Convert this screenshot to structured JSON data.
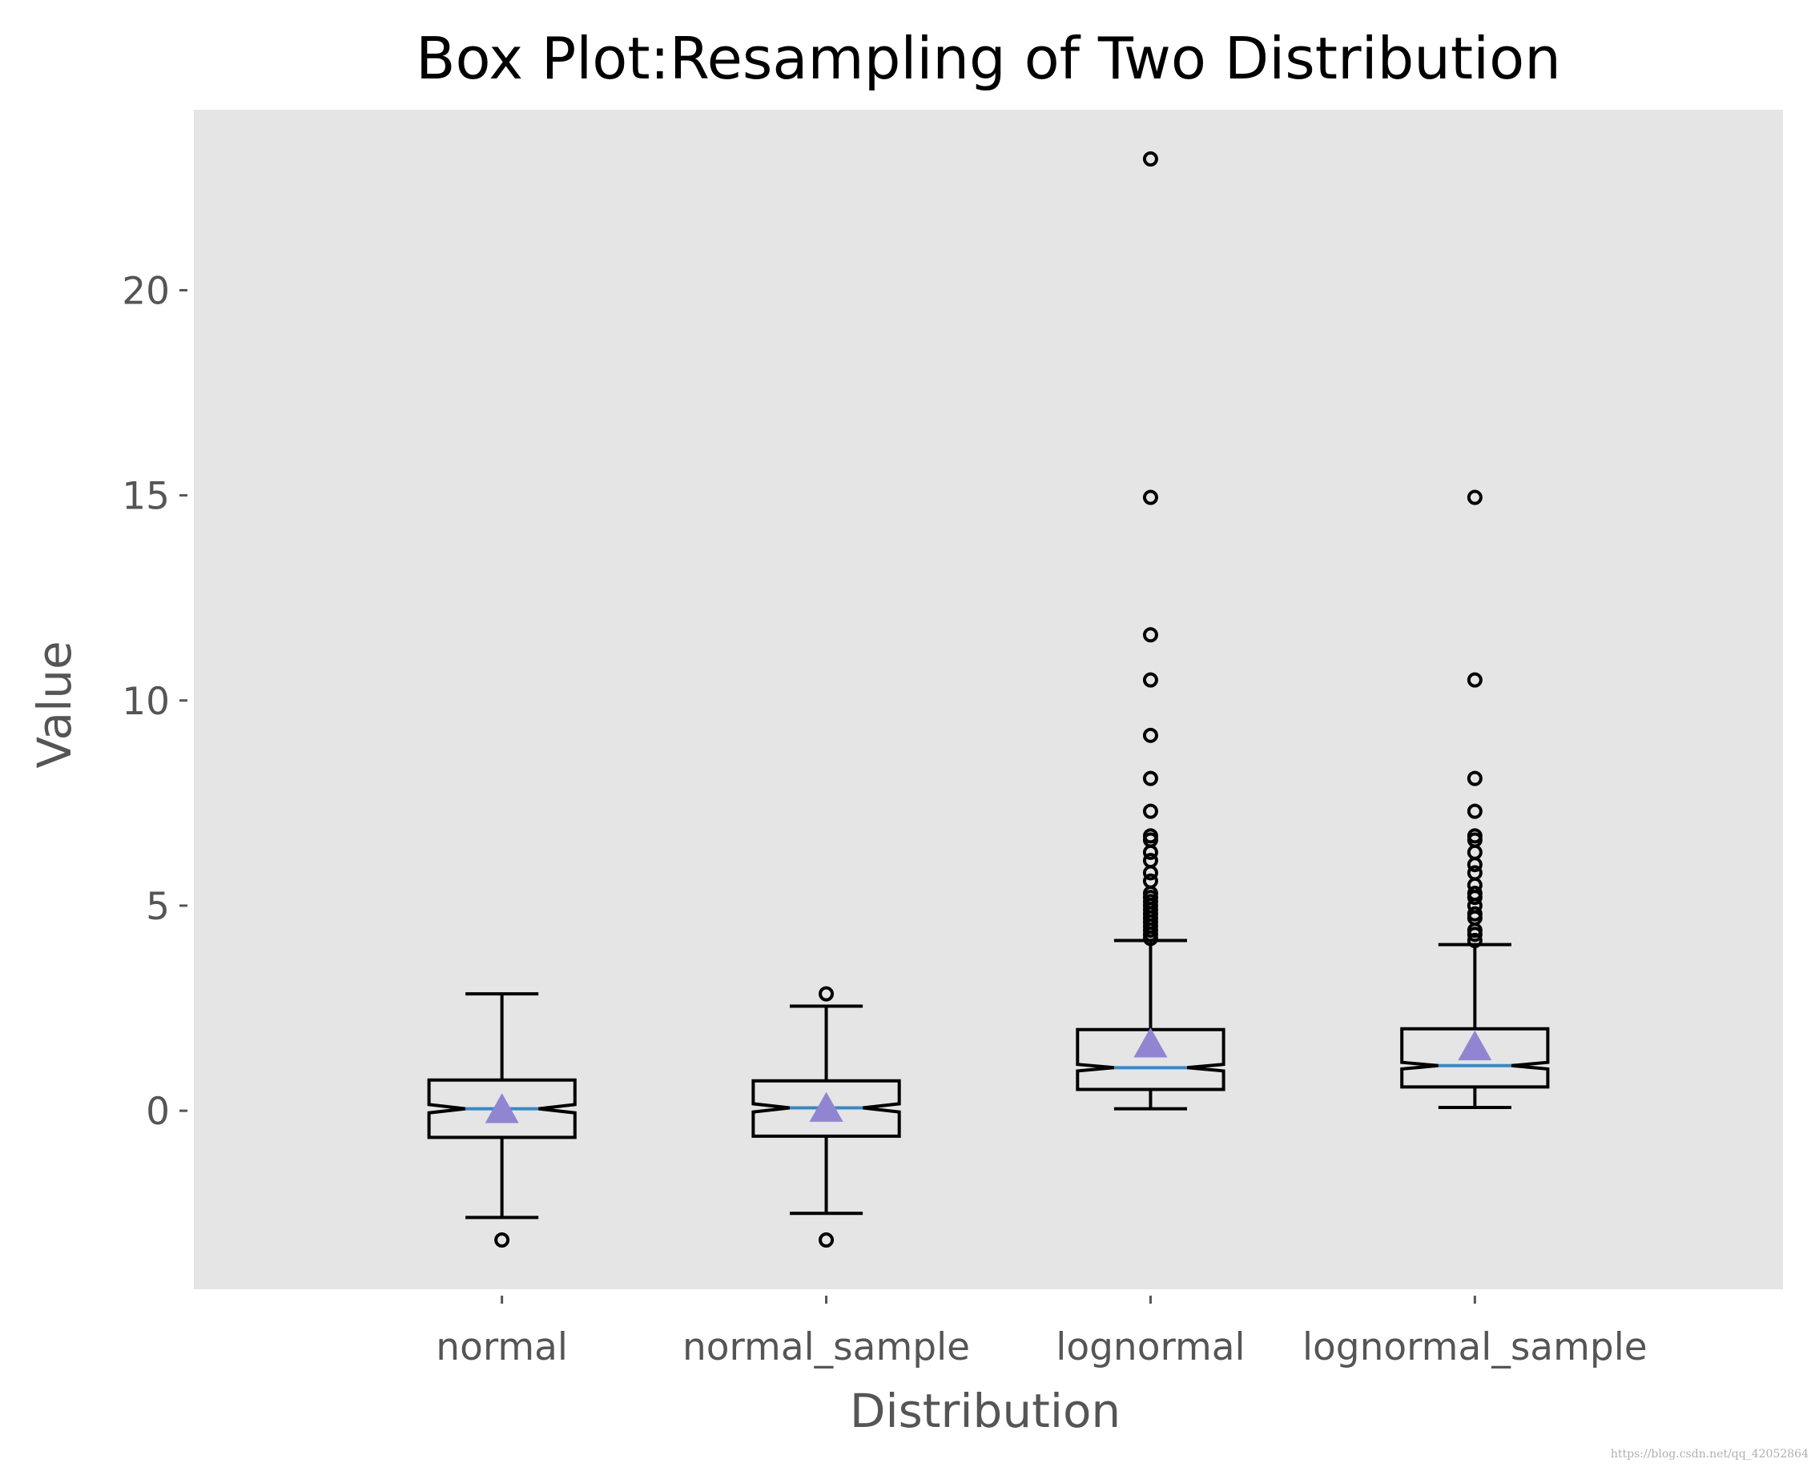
{
  "chart_data": {
    "type": "box",
    "title": "Box Plot:Resampling of Two Distribution",
    "xlabel": "Distribution",
    "ylabel": "Value",
    "ylim": [
      -4.35,
      24.4
    ],
    "yticks": [
      0,
      5,
      10,
      15,
      20
    ],
    "grid": false,
    "notch": true,
    "showmeans": true,
    "colors": {
      "background": "#e5e5e5",
      "box": "#000000",
      "median": "#3b88c2",
      "mean": "#9185d2"
    },
    "categories": [
      "normal",
      "normal_sample",
      "lognormal",
      "lognormal_sample"
    ],
    "boxes": [
      {
        "name": "normal",
        "whisker_low": -2.6,
        "q1": -0.65,
        "median": 0.05,
        "q3": 0.75,
        "whisker_high": 2.85,
        "mean": 0.02,
        "notch_low": -0.05,
        "notch_high": 0.15,
        "fliers": [
          -3.15
        ]
      },
      {
        "name": "normal_sample",
        "whisker_low": -2.5,
        "q1": -0.62,
        "median": 0.07,
        "q3": 0.73,
        "whisker_high": 2.55,
        "mean": 0.05,
        "notch_low": -0.03,
        "notch_high": 0.17,
        "fliers": [
          2.85,
          -3.15
        ]
      },
      {
        "name": "lognormal",
        "whisker_low": 0.05,
        "q1": 0.52,
        "median": 1.05,
        "q3": 1.98,
        "whisker_high": 4.15,
        "mean": 1.62,
        "notch_low": 0.97,
        "notch_high": 1.13,
        "fliers": [
          23.2,
          14.95,
          11.6,
          10.5,
          9.15,
          8.1,
          7.3,
          6.7,
          6.6,
          6.3,
          6.1,
          5.8,
          5.6,
          5.3,
          5.2,
          5.1,
          5.0,
          4.9,
          4.8,
          4.7,
          4.6,
          4.5,
          4.4,
          4.3,
          4.2
        ]
      },
      {
        "name": "lognormal_sample",
        "whisker_low": 0.08,
        "q1": 0.58,
        "median": 1.1,
        "q3": 2.0,
        "whisker_high": 4.05,
        "mean": 1.55,
        "notch_low": 1.02,
        "notch_high": 1.18,
        "fliers": [
          14.95,
          10.5,
          8.1,
          7.3,
          6.7,
          6.6,
          6.3,
          6.0,
          5.8,
          5.5,
          5.3,
          5.2,
          5.0,
          4.8,
          4.7,
          4.4,
          4.3,
          4.15
        ]
      }
    ]
  },
  "watermark": "https://blog.csdn.net/qq_42052864"
}
